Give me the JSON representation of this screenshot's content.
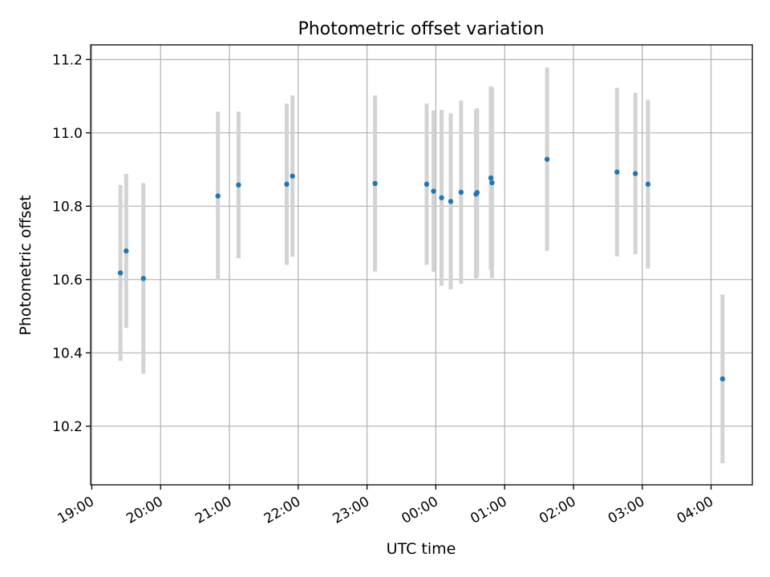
{
  "chart_data": {
    "type": "scatter",
    "title": "Photometric offset variation",
    "xlabel": "UTC time",
    "ylabel": "Photometric offset",
    "x_tick_labels": [
      "19:00",
      "20:00",
      "21:00",
      "22:00",
      "23:00",
      "00:00",
      "01:00",
      "02:00",
      "03:00",
      "04:00"
    ],
    "x_ticks_minutes": [
      0,
      60,
      120,
      180,
      240,
      300,
      360,
      420,
      480,
      540
    ],
    "xlim_minutes": [
      -1,
      576
    ],
    "x_unit_note": "minutes after 19:00 UTC",
    "y_tick_labels": [
      "10.2",
      "10.4",
      "10.6",
      "10.8",
      "11.0",
      "11.2"
    ],
    "y_ticks": [
      10.2,
      10.4,
      10.6,
      10.8,
      11.0,
      11.2
    ],
    "ylim": [
      10.04,
      11.24
    ],
    "grid": true,
    "point_color": "#1f77b4",
    "errorbar_color": "#d3d3d3",
    "points": [
      {
        "time": "19:25",
        "x": 25,
        "y": 10.618,
        "err": 0.24
      },
      {
        "time": "19:30",
        "x": 30,
        "y": 10.678,
        "err": 0.21
      },
      {
        "time": "19:45",
        "x": 45,
        "y": 10.603,
        "err": 0.26
      },
      {
        "time": "20:50",
        "x": 110,
        "y": 10.828,
        "err": 0.23
      },
      {
        "time": "21:08",
        "x": 128,
        "y": 10.858,
        "err": 0.2
      },
      {
        "time": "21:50",
        "x": 170,
        "y": 10.86,
        "err": 0.22
      },
      {
        "time": "21:55",
        "x": 175,
        "y": 10.882,
        "err": 0.22
      },
      {
        "time": "23:07",
        "x": 247,
        "y": 10.862,
        "err": 0.24
      },
      {
        "time": "23:52",
        "x": 292,
        "y": 10.86,
        "err": 0.22
      },
      {
        "time": "23:58",
        "x": 298,
        "y": 10.841,
        "err": 0.22
      },
      {
        "time": "00:05",
        "x": 305,
        "y": 10.823,
        "err": 0.24
      },
      {
        "time": "00:13",
        "x": 313,
        "y": 10.813,
        "err": 0.24
      },
      {
        "time": "00:22",
        "x": 322,
        "y": 10.838,
        "err": 0.25
      },
      {
        "time": "00:35",
        "x": 335,
        "y": 10.833,
        "err": 0.23
      },
      {
        "time": "00:36",
        "x": 336,
        "y": 10.837,
        "err": 0.23
      },
      {
        "time": "00:48",
        "x": 348,
        "y": 10.877,
        "err": 0.25
      },
      {
        "time": "00:49",
        "x": 349,
        "y": 10.864,
        "err": 0.26
      },
      {
        "time": "01:37",
        "x": 397,
        "y": 10.928,
        "err": 0.25
      },
      {
        "time": "02:38",
        "x": 458,
        "y": 10.893,
        "err": 0.23
      },
      {
        "time": "02:54",
        "x": 474,
        "y": 10.889,
        "err": 0.22
      },
      {
        "time": "03:05",
        "x": 485,
        "y": 10.86,
        "err": 0.23
      },
      {
        "time": "04:10",
        "x": 550,
        "y": 10.329,
        "err": 0.23
      }
    ]
  }
}
